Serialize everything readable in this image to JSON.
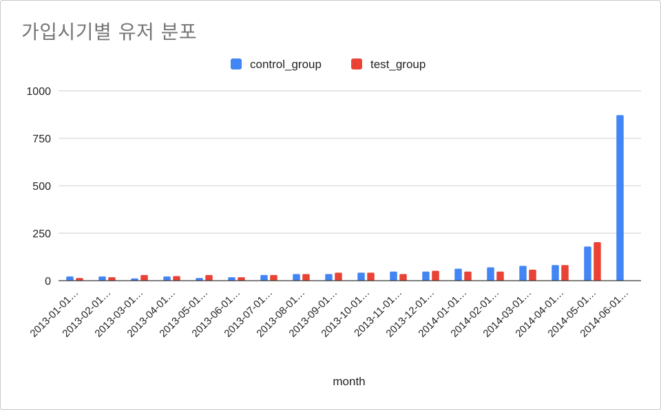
{
  "chart_data": {
    "type": "bar",
    "title": "가입시기별 유저 분포",
    "xlabel": "month",
    "ylabel": "",
    "ylim": [
      0,
      1000
    ],
    "yticks": [
      0,
      250,
      500,
      750,
      1000
    ],
    "grid": true,
    "legend_position": "top",
    "categories": [
      "2013-01-01…",
      "2013-02-01…",
      "2013-03-01…",
      "2013-04-01…",
      "2013-05-01…",
      "2013-06-01…",
      "2013-07-01…",
      "2013-08-01…",
      "2013-09-01…",
      "2013-10-01…",
      "2013-11-01…",
      "2013-12-01…",
      "2014-01-01…",
      "2014-02-01…",
      "2014-03-01…",
      "2014-04-01…",
      "2014-05-01…",
      "2014-06-01…"
    ],
    "series": [
      {
        "name": "control_group",
        "color": "#4285f4",
        "values": [
          22,
          22,
          12,
          22,
          14,
          18,
          30,
          35,
          35,
          42,
          48,
          48,
          63,
          70,
          78,
          82,
          180,
          872
        ]
      },
      {
        "name": "test_group",
        "color": "#ea4335",
        "values": [
          14,
          18,
          30,
          24,
          30,
          18,
          30,
          35,
          42,
          42,
          35,
          52,
          48,
          48,
          58,
          82,
          203,
          0
        ]
      }
    ]
  }
}
